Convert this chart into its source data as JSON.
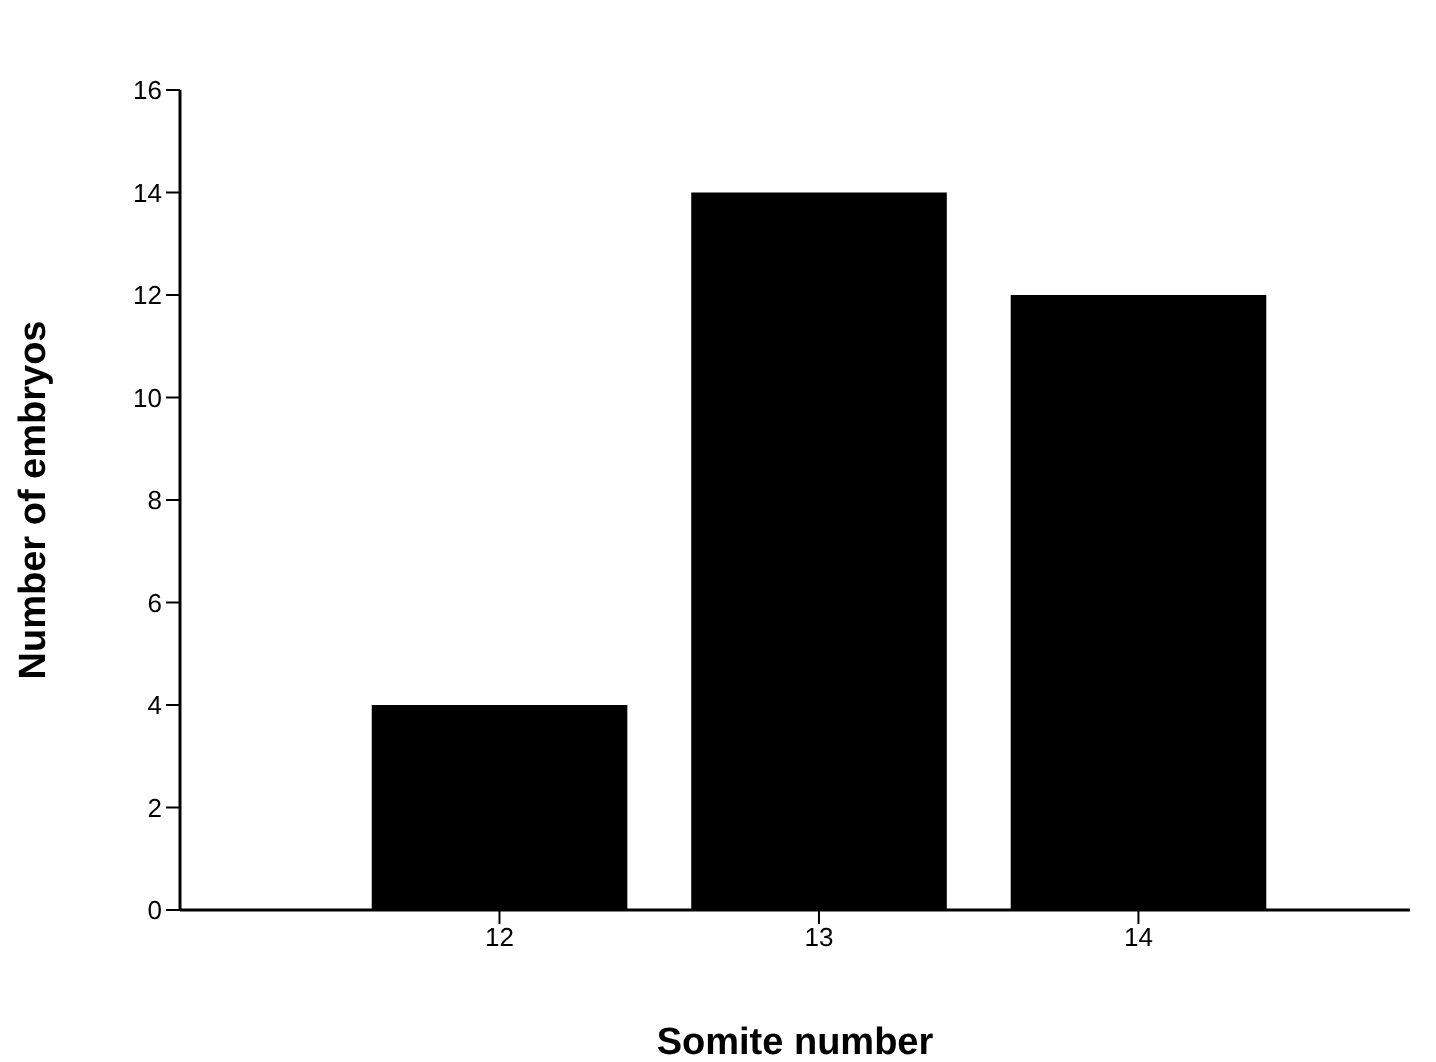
{
  "chart_data": {
    "type": "bar",
    "xlabel": "Somite number",
    "ylabel": "Number of embryos",
    "x": [
      12,
      13,
      14
    ],
    "values": [
      4,
      14,
      12
    ],
    "color": "#000000",
    "xlim": [
      11,
      14.85
    ],
    "xticks": [
      12,
      13,
      14
    ],
    "ylim": [
      0,
      16
    ],
    "yticks": [
      0,
      2,
      4,
      6,
      8,
      10,
      12,
      14,
      16
    ],
    "grid": false
  }
}
